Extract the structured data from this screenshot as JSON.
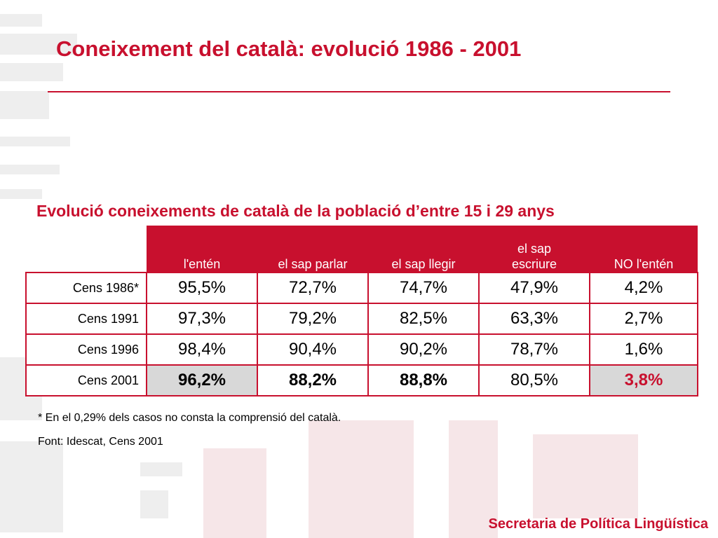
{
  "title": "Coneixement del català: evolució 1986 - 2001",
  "table": {
    "caption": "Evolució coneixements de català de la població d’entre 15 i 29 anys",
    "columns": [
      {
        "line1": "",
        "line2": "l'entén"
      },
      {
        "line1": "",
        "line2": "el sap parlar"
      },
      {
        "line1": "",
        "line2": "el sap llegir"
      },
      {
        "line1": "el sap",
        "line2": "escriure"
      },
      {
        "line1": "",
        "line2": "NO l'entén"
      }
    ],
    "rows": [
      {
        "label": "Cens 1986*",
        "values": [
          "95,5%",
          "72,7%",
          "74,7%",
          "47,9%",
          "4,2%"
        ]
      },
      {
        "label": "Cens 1991",
        "values": [
          "97,3%",
          "79,2%",
          "82,5%",
          "63,3%",
          "2,7%"
        ]
      },
      {
        "label": "Cens 1996",
        "values": [
          "98,4%",
          "90,4%",
          "90,2%",
          "78,7%",
          "1,6%"
        ]
      },
      {
        "label": "Cens 2001",
        "values": [
          "96,2%",
          "88,2%",
          "88,8%",
          "80,5%",
          "3,8%"
        ]
      }
    ]
  },
  "notes": {
    "footnote": "* En el 0,29% dels casos no consta la comprensió del català.",
    "source": "Font: Idescat, Cens 2001"
  },
  "footer": "Secretaria de Política Lingüística",
  "colors": {
    "accent": "#c8102e",
    "highlight_cell": "#d8d8d8"
  }
}
